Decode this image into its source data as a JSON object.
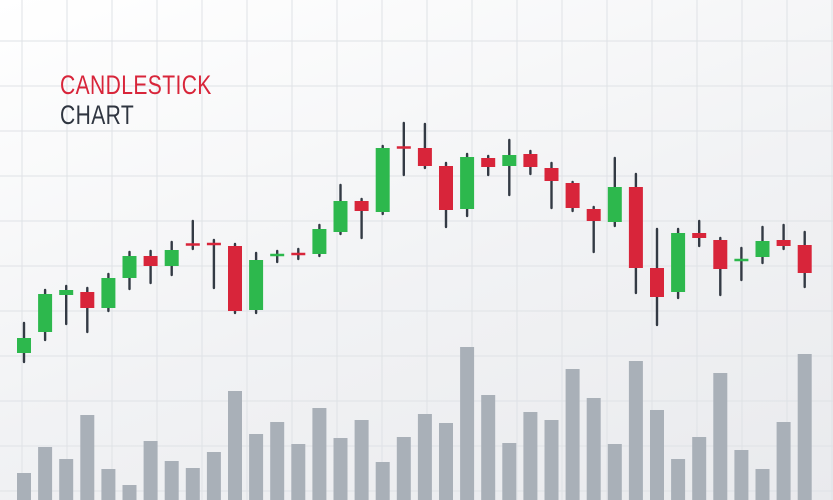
{
  "chart_data": {
    "type": "candlestick",
    "title": [
      "CANDLESTICK",
      "CHART"
    ],
    "xlabel": "",
    "ylabel": "",
    "ylim": [
      0,
      500
    ],
    "grid": true,
    "colors": {
      "up": "#2db84d",
      "down": "#d8253a",
      "wick": "#333a44",
      "volume": "#a9b0b8",
      "title_accent": "#d8253a",
      "title_main": "#2f3540",
      "grid": "#dfe2e6"
    },
    "candles": [
      {
        "open": 147,
        "close": 162,
        "high": 177,
        "low": 138
      },
      {
        "open": 168,
        "close": 206,
        "high": 210,
        "low": 160
      },
      {
        "open": 205,
        "close": 210,
        "high": 214,
        "low": 176
      },
      {
        "open": 208,
        "close": 192,
        "high": 212,
        "low": 168
      },
      {
        "open": 192,
        "close": 222,
        "high": 226,
        "low": 189
      },
      {
        "open": 222,
        "close": 244,
        "high": 248,
        "low": 211
      },
      {
        "open": 244,
        "close": 234,
        "high": 249,
        "low": 217
      },
      {
        "open": 234,
        "close": 250,
        "high": 258,
        "low": 225
      },
      {
        "open": 256,
        "close": 255,
        "high": 279,
        "low": 251
      },
      {
        "open": 257,
        "close": 255,
        "high": 260,
        "low": 212
      },
      {
        "open": 254,
        "close": 189,
        "high": 256,
        "low": 187
      },
      {
        "open": 190,
        "close": 240,
        "high": 247,
        "low": 187
      },
      {
        "open": 245,
        "close": 245,
        "high": 249,
        "low": 238
      },
      {
        "open": 247,
        "close": 245,
        "high": 251,
        "low": 241
      },
      {
        "open": 246,
        "close": 271,
        "high": 275,
        "low": 244
      },
      {
        "open": 268,
        "close": 299,
        "high": 315,
        "low": 266
      },
      {
        "open": 299,
        "close": 289,
        "high": 301,
        "low": 262
      },
      {
        "open": 288,
        "close": 352,
        "high": 354,
        "low": 286
      },
      {
        "open": 353,
        "close": 352,
        "high": 377,
        "low": 325
      },
      {
        "open": 352,
        "close": 334,
        "high": 376,
        "low": 332
      },
      {
        "open": 334,
        "close": 290,
        "high": 337,
        "low": 273
      },
      {
        "open": 291,
        "close": 343,
        "high": 346,
        "low": 284
      },
      {
        "open": 342,
        "close": 333,
        "high": 344,
        "low": 325
      },
      {
        "open": 334,
        "close": 345,
        "high": 360,
        "low": 305
      },
      {
        "open": 346,
        "close": 333,
        "high": 349,
        "low": 326
      },
      {
        "open": 332,
        "close": 319,
        "high": 337,
        "low": 292
      },
      {
        "open": 317,
        "close": 292,
        "high": 318,
        "low": 289
      },
      {
        "open": 291,
        "close": 279,
        "high": 293,
        "low": 248
      },
      {
        "open": 278,
        "close": 313,
        "high": 342,
        "low": 274
      },
      {
        "open": 313,
        "close": 232,
        "high": 326,
        "low": 207
      },
      {
        "open": 232,
        "close": 203,
        "high": 271,
        "low": 175
      },
      {
        "open": 208,
        "close": 267,
        "high": 271,
        "low": 202
      },
      {
        "open": 267,
        "close": 262,
        "high": 279,
        "low": 254
      },
      {
        "open": 260,
        "close": 231,
        "high": 262,
        "low": 205
      },
      {
        "open": 239,
        "close": 241,
        "high": 252,
        "low": 220
      },
      {
        "open": 243,
        "close": 259,
        "high": 273,
        "low": 237
      },
      {
        "open": 260,
        "close": 254,
        "high": 275,
        "low": 251
      },
      {
        "open": 255,
        "close": 227,
        "high": 268,
        "low": 213
      }
    ],
    "volume": [
      27,
      53,
      41,
      85,
      31,
      15,
      59,
      39,
      32,
      48,
      109,
      66,
      78,
      56,
      92,
      62,
      80,
      38,
      63,
      86,
      77,
      153,
      105,
      57,
      88,
      80,
      131,
      102,
      56,
      139,
      90,
      41,
      63,
      127,
      50,
      31,
      78,
      146
    ]
  }
}
